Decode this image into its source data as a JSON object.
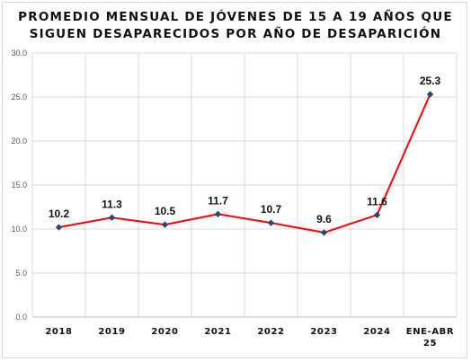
{
  "chart_data": {
    "type": "line",
    "title_lines": [
      "PROMEDIO MENSUAL DE JÓVENES DE 15 A 19 AÑOS QUE",
      "SIGUEN DESAPARECIDOS POR AÑO DE DESAPARICIÓN"
    ],
    "categories": [
      "2018",
      "2019",
      "2020",
      "2021",
      "2022",
      "2023",
      "2024",
      "ENE-ABR 25"
    ],
    "series": [
      {
        "values": [
          10.2,
          11.3,
          10.5,
          11.7,
          10.7,
          9.6,
          11.6,
          25.3
        ],
        "labels": [
          "10.2",
          "11.3",
          "10.5",
          "11.7",
          "10.7",
          "9.6",
          "11.6",
          "25.3"
        ],
        "line_color": "#ff0000",
        "marker_color": "#1f4e79"
      }
    ],
    "ylim": [
      0,
      30
    ],
    "yticks": [
      "0.0",
      "5.0",
      "10.0",
      "15.0",
      "20.0",
      "25.0",
      "30.0"
    ],
    "grid": true,
    "legend": "none"
  }
}
